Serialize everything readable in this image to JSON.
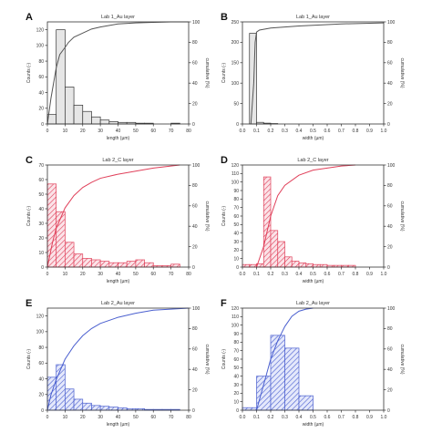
{
  "colors": {
    "gray_fill": "#e6e6e6",
    "red": "#e0405a",
    "blue": "#4a5fcf",
    "axis": "#333333"
  },
  "chart_data": [
    {
      "id": "A",
      "type": "bar",
      "panel_label": "A",
      "title": "Lab 1_Au layer",
      "xlabel": "length (µm)",
      "ylabel": "Counts (-)",
      "y2label": "cumulative (%)",
      "xlim": [
        0,
        80
      ],
      "ylim": [
        0,
        130
      ],
      "y2lim": [
        0,
        100
      ],
      "bin_width": 5,
      "color": "gray",
      "xticks": [
        0,
        10,
        20,
        30,
        40,
        50,
        60,
        70,
        80
      ],
      "yticks": [
        0,
        20,
        40,
        60,
        80,
        100,
        120
      ],
      "y2ticks": [
        0,
        20,
        40,
        60,
        80,
        100
      ],
      "bin_starts": [
        0,
        5,
        10,
        15,
        20,
        25,
        30,
        35,
        40,
        45,
        50,
        55,
        60,
        65,
        70,
        75
      ],
      "counts": [
        12,
        120,
        47,
        24,
        16,
        9,
        5,
        3,
        2,
        2,
        1,
        1,
        0,
        0,
        1,
        0
      ],
      "cumulative": {
        "x": [
          0,
          2,
          5,
          7,
          10,
          12,
          15,
          20,
          25,
          30,
          40,
          50,
          60,
          70,
          80
        ],
        "y": [
          0,
          25,
          55,
          68,
          75,
          80,
          85,
          89,
          93,
          95,
          98,
          99,
          99.5,
          100,
          100
        ]
      }
    },
    {
      "id": "B",
      "type": "bar",
      "panel_label": "B",
      "title": "Lab 1_Au layer",
      "xlabel": "width (µm)",
      "ylabel": "Counts (-)",
      "y2label": "cumulative (%)",
      "xlim": [
        0,
        1.0
      ],
      "ylim": [
        0,
        250
      ],
      "y2lim": [
        0,
        100
      ],
      "bin_width": 0.05,
      "color": "gray",
      "xticks": [
        0.0,
        0.1,
        0.2,
        0.3,
        0.4,
        0.5,
        0.6,
        0.7,
        0.8,
        0.9,
        1.0
      ],
      "yticks": [
        0,
        50,
        100,
        150,
        200,
        250
      ],
      "y2ticks": [
        0,
        20,
        40,
        60,
        80,
        100
      ],
      "bin_starts": [
        0.05,
        0.1,
        0.15,
        0.2
      ],
      "counts": [
        222,
        4,
        2,
        1
      ],
      "cumulative": {
        "x": [
          0.06,
          0.08,
          0.09,
          0.1,
          0.12,
          0.2,
          0.4,
          0.7,
          1.0
        ],
        "y": [
          0,
          40,
          80,
          90,
          92,
          94,
          96,
          98,
          99
        ]
      }
    },
    {
      "id": "C",
      "type": "bar",
      "panel_label": "C",
      "title": "Lab 2_C layer",
      "xlabel": "length (µm)",
      "ylabel": "Counts (-)",
      "y2label": "cumulative (%)",
      "xlim": [
        0,
        80
      ],
      "ylim": [
        0,
        70
      ],
      "y2lim": [
        0,
        100
      ],
      "bin_width": 5,
      "color": "red",
      "xticks": [
        0,
        10,
        20,
        30,
        40,
        50,
        60,
        70,
        80
      ],
      "yticks": [
        0,
        10,
        20,
        30,
        40,
        50,
        60,
        70
      ],
      "y2ticks": [
        0,
        20,
        40,
        60,
        80,
        100
      ],
      "bin_starts": [
        0,
        5,
        10,
        15,
        20,
        25,
        30,
        35,
        40,
        45,
        50,
        55,
        60,
        65,
        70,
        75
      ],
      "counts": [
        57,
        38,
        17,
        9,
        6,
        5,
        4,
        3,
        3,
        4,
        5,
        3,
        1,
        1,
        2,
        0
      ],
      "cumulative": {
        "x": [
          0,
          3,
          5,
          10,
          15,
          20,
          25,
          30,
          40,
          50,
          60,
          70,
          75
        ],
        "y": [
          0,
          25,
          38,
          58,
          70,
          78,
          83,
          87,
          91,
          94,
          97,
          99,
          100
        ]
      }
    },
    {
      "id": "D",
      "type": "bar",
      "panel_label": "D",
      "title": "Lab 2_C layer",
      "xlabel": "width (µm)",
      "ylabel": "Counts (-)",
      "y2label": "cumulative (%)",
      "xlim": [
        0,
        1.0
      ],
      "ylim": [
        0,
        120
      ],
      "y2lim": [
        0,
        100
      ],
      "bin_width": 0.05,
      "color": "red",
      "xticks": [
        0.0,
        0.1,
        0.2,
        0.3,
        0.4,
        0.5,
        0.6,
        0.7,
        0.8,
        0.9,
        1.0
      ],
      "yticks": [
        0,
        10,
        20,
        30,
        40,
        50,
        60,
        70,
        80,
        90,
        100,
        110,
        120
      ],
      "y2ticks": [
        0,
        20,
        40,
        60,
        80,
        100
      ],
      "bin_starts": [
        0.0,
        0.05,
        0.1,
        0.15,
        0.2,
        0.25,
        0.3,
        0.35,
        0.4,
        0.45,
        0.5,
        0.55,
        0.6,
        0.65,
        0.7,
        0.75
      ],
      "counts": [
        3,
        3,
        4,
        106,
        43,
        30,
        12,
        7,
        5,
        4,
        3,
        3,
        2,
        2,
        2,
        2
      ],
      "cumulative": {
        "x": [
          0.1,
          0.15,
          0.2,
          0.25,
          0.3,
          0.4,
          0.5,
          0.6,
          0.7,
          0.8
        ],
        "y": [
          0,
          20,
          50,
          70,
          80,
          90,
          95,
          97,
          99,
          100
        ]
      }
    },
    {
      "id": "E",
      "type": "bar",
      "panel_label": "E",
      "title": "Lab 2_Au layer",
      "xlabel": "length (µm)",
      "ylabel": "Counts (-)",
      "y2label": "cumulative (%)",
      "xlim": [
        0,
        80
      ],
      "ylim": [
        0,
        130
      ],
      "y2lim": [
        0,
        100
      ],
      "bin_width": 5,
      "color": "blue",
      "xticks": [
        0,
        10,
        20,
        30,
        40,
        50,
        60,
        70,
        80
      ],
      "yticks": [
        0,
        20,
        40,
        60,
        80,
        100,
        120
      ],
      "y2ticks": [
        0,
        20,
        40,
        60,
        80,
        100
      ],
      "bin_starts": [
        0,
        5,
        10,
        15,
        20,
        25,
        30,
        35,
        40,
        45,
        50,
        55,
        60,
        65,
        70,
        75
      ],
      "counts": [
        42,
        58,
        27,
        14,
        9,
        6,
        5,
        4,
        3,
        2,
        2,
        1,
        1,
        1,
        1,
        0
      ],
      "cumulative": {
        "x": [
          0,
          2,
          5,
          10,
          15,
          20,
          25,
          30,
          40,
          50,
          60,
          70,
          80
        ],
        "y": [
          0,
          15,
          30,
          50,
          63,
          73,
          80,
          85,
          91,
          95,
          98,
          99,
          100
        ]
      }
    },
    {
      "id": "F",
      "type": "bar",
      "panel_label": "F",
      "title": "Lab 2_Au layer",
      "xlabel": "width (µm)",
      "ylabel": "Counts (-)",
      "y2label": "cumulative (%)",
      "xlim": [
        0,
        1.0
      ],
      "ylim": [
        0,
        120
      ],
      "y2lim": [
        0,
        100
      ],
      "bin_width": 0.1,
      "color": "blue",
      "xticks": [
        0.0,
        0.1,
        0.2,
        0.3,
        0.4,
        0.5,
        0.6,
        0.7,
        0.8,
        0.9,
        1.0
      ],
      "yticks": [
        0,
        10,
        20,
        30,
        40,
        50,
        60,
        70,
        80,
        90,
        100,
        110,
        120
      ],
      "y2ticks": [
        0,
        20,
        40,
        60,
        80,
        100
      ],
      "bin_starts": [
        0.0,
        0.1,
        0.2,
        0.3,
        0.4
      ],
      "counts": [
        3,
        40,
        88,
        73,
        17
      ],
      "cumulative": {
        "x": [
          0.1,
          0.15,
          0.2,
          0.25,
          0.3,
          0.35,
          0.4,
          0.45,
          0.5
        ],
        "y": [
          0,
          25,
          50,
          68,
          82,
          92,
          97,
          99,
          100
        ]
      }
    }
  ]
}
